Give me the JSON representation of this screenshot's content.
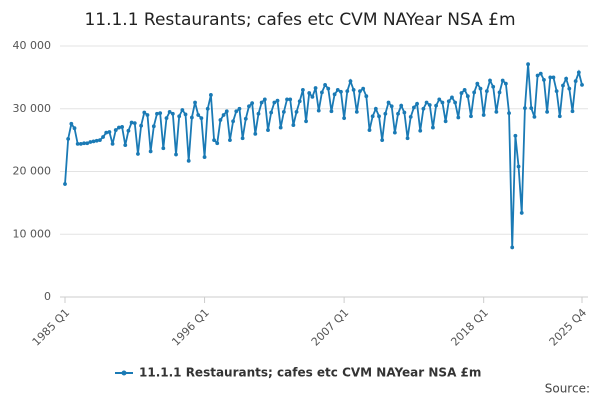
{
  "chart_data": {
    "type": "line",
    "title": "11.1.1 Restaurants; cafes etc CVM NAYear NSA £m",
    "source": "Source:",
    "categories": [
      "1985 Q1",
      null,
      null,
      null,
      null,
      null,
      null,
      null,
      null,
      null,
      null,
      null,
      null,
      null,
      null,
      null,
      null,
      null,
      null,
      null,
      null,
      null,
      null,
      null,
      null,
      null,
      null,
      null,
      null,
      null,
      null,
      null,
      null,
      null,
      null,
      null,
      null,
      null,
      null,
      null,
      null,
      null,
      null,
      null,
      "1996 Q1",
      null,
      null,
      null,
      null,
      null,
      null,
      null,
      null,
      null,
      null,
      null,
      null,
      null,
      null,
      null,
      null,
      null,
      null,
      null,
      null,
      null,
      null,
      null,
      null,
      null,
      null,
      null,
      null,
      null,
      null,
      null,
      null,
      null,
      null,
      null,
      null,
      null,
      null,
      null,
      null,
      null,
      null,
      null,
      "2007 Q1",
      null,
      null,
      null,
      null,
      null,
      null,
      null,
      null,
      null,
      null,
      null,
      null,
      null,
      null,
      null,
      null,
      null,
      null,
      null,
      null,
      null,
      null,
      null,
      null,
      null,
      null,
      null,
      null,
      null,
      null,
      null,
      null,
      null,
      null,
      null,
      null,
      null,
      null,
      null,
      null,
      null,
      null,
      null,
      "2018 Q1",
      null,
      null,
      null,
      null,
      null,
      null,
      null,
      null,
      null,
      null,
      null,
      null,
      null,
      null,
      null,
      null,
      null,
      null,
      null,
      null,
      null,
      null,
      null,
      null,
      null,
      null,
      null,
      null,
      null,
      null,
      "2025 Q4"
    ],
    "series": [
      {
        "name": "11.1.1 Restaurants; cafes etc CVM NAYear NSA £m",
        "color": "#1a7ab5",
        "values": [
          18000,
          25200,
          27600,
          26900,
          24400,
          24400,
          24500,
          24500,
          24700,
          24800,
          24900,
          25000,
          25500,
          26200,
          26300,
          24400,
          26600,
          27000,
          27100,
          24200,
          26500,
          27800,
          27700,
          22800,
          27300,
          29400,
          29000,
          23200,
          27200,
          29200,
          29300,
          23700,
          28500,
          29500,
          29200,
          22700,
          28800,
          29800,
          29100,
          21700,
          28600,
          31000,
          29000,
          28500,
          22300,
          30000,
          32200,
          25000,
          24500,
          28200,
          29000,
          29600,
          25000,
          28000,
          29600,
          30000,
          25300,
          28400,
          30400,
          30900,
          26000,
          29200,
          31000,
          31500,
          26600,
          29400,
          31000,
          31300,
          27000,
          29500,
          31500,
          31500,
          27400,
          29500,
          31200,
          33000,
          28000,
          32500,
          31900,
          33300,
          29700,
          32600,
          33800,
          33200,
          29600,
          32300,
          33000,
          32700,
          28500,
          32800,
          34400,
          33000,
          29500,
          32800,
          33200,
          32000,
          26600,
          28800,
          30000,
          28800,
          25000,
          29200,
          31000,
          30400,
          26200,
          29200,
          30500,
          29400,
          25300,
          28700,
          30200,
          30800,
          26500,
          30000,
          31000,
          30600,
          27000,
          30500,
          31500,
          31000,
          28000,
          31200,
          31800,
          31000,
          28600,
          32500,
          33000,
          32000,
          28800,
          32600,
          34000,
          33200,
          29000,
          32800,
          34500,
          33500,
          29500,
          32600,
          34500,
          34000,
          29300,
          7900,
          25700,
          20800,
          13400,
          30100,
          37100,
          30100,
          28700,
          35300,
          35600,
          34600,
          29500,
          35000,
          35000,
          32800,
          28800,
          33700,
          34800,
          33200,
          29600,
          34400,
          35800,
          33800
        ]
      }
    ],
    "ylim": [
      0,
      40000
    ],
    "yticks": [
      0,
      {
        "value": 10000,
        "label": "10 000"
      },
      {
        "value": 20000,
        "label": "20 000"
      },
      {
        "value": 30000,
        "label": "30 000"
      },
      {
        "value": 40000,
        "label": "40 000"
      }
    ],
    "grid": true
  }
}
